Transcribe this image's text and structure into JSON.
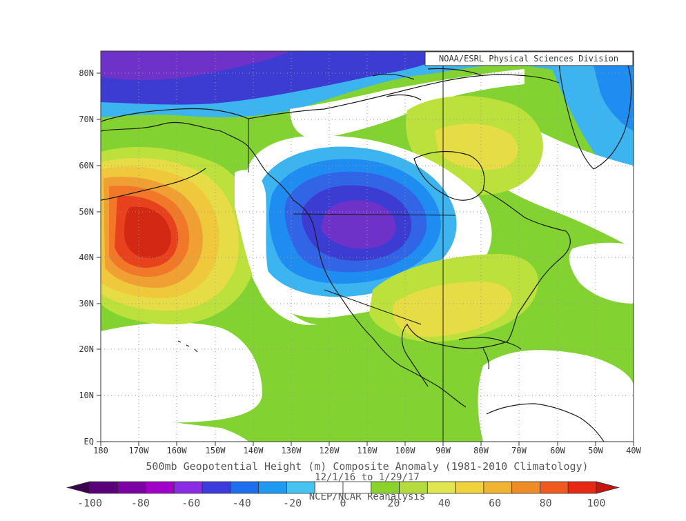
{
  "credit": "NOAA/ESRL Physical Sciences Division",
  "lat_labels": [
    "80N",
    "70N",
    "60N",
    "50N",
    "40N",
    "30N",
    "20N",
    "10N",
    "EQ"
  ],
  "lon_labels": [
    "180",
    "170W",
    "160W",
    "150W",
    "140W",
    "130W",
    "120W",
    "110W",
    "100W",
    "90W",
    "80W",
    "70W",
    "60W",
    "50W",
    "40W"
  ],
  "caption": {
    "title": "500mb Geopotential Height (m) Composite Anomaly (1981-2010 Climatology)",
    "dates": "12/1/16  to 1/29/17",
    "source": "NCEP/NCAR Reanalysis"
  },
  "colorbar": {
    "labels": [
      "-100",
      "-80",
      "-60",
      "-40",
      "-20",
      "0",
      "20",
      "40",
      "60",
      "80",
      "100"
    ],
    "colors": [
      "#5a0078",
      "#7d00a5",
      "#a000c8",
      "#8a2be6",
      "#3c3cdc",
      "#1e6ef0",
      "#1e9bf0",
      "#46c3f0",
      "#ffffff",
      "#ffffff",
      "#8cd22d",
      "#b4dc3c",
      "#e1e650",
      "#f0d23c",
      "#f0b432",
      "#f08c28",
      "#f05a1e",
      "#e62814"
    ]
  },
  "map_colors": {
    "ocean": "#ffffff",
    "green": "#82d232",
    "yellowgreen": "#bce13c",
    "yellow": "#e6dc46",
    "gold": "#f0c83c",
    "orange": "#f0a032",
    "darkorange": "#f07828",
    "red": "#e8411e",
    "darkred": "#d22814",
    "lightblue": "#3cb4f0",
    "blue": "#1e8cf0",
    "midblue": "#3264e6",
    "deepblue": "#3c3cd2",
    "violet": "#6e32c8"
  }
}
